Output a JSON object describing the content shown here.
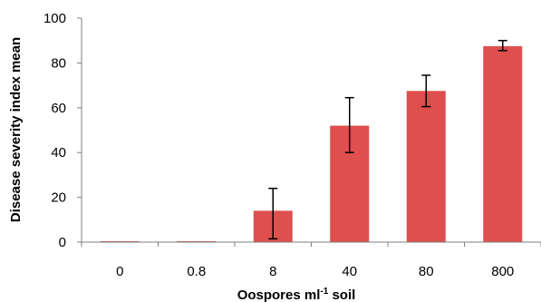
{
  "chart_data": {
    "type": "bar",
    "categories": [
      "0",
      "0.8",
      "8",
      "40",
      "80",
      "800"
    ],
    "values": [
      0,
      0,
      14,
      52,
      67.5,
      87.5
    ],
    "error": [
      [
        0,
        0
      ],
      [
        0,
        0
      ],
      [
        1.5,
        24
      ],
      [
        40,
        64.5
      ],
      [
        60.5,
        74.5
      ],
      [
        85.5,
        90
      ]
    ],
    "ylim": [
      0,
      100
    ],
    "yticks": [
      "0",
      "20",
      "40",
      "60",
      "80",
      "100"
    ],
    "ylabel": "Disease severity index mean",
    "xlabel": {
      "prefix": "Oospores ml",
      "superscript": "-1",
      "suffix": " soil"
    },
    "bar_color": "#de4f4e",
    "grid": false,
    "legend": "none"
  }
}
